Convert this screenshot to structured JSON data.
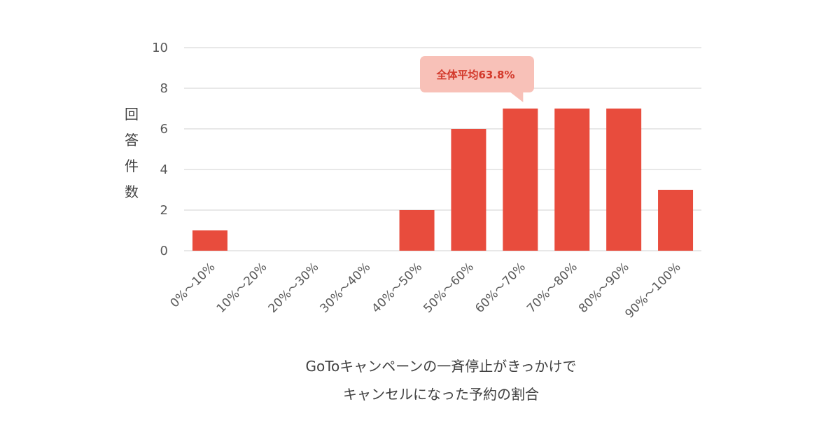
{
  "chart_data": {
    "type": "bar",
    "categories": [
      "0%～10%",
      "10%～20%",
      "20%～30%",
      "30%～40%",
      "40%～50%",
      "50%～60%",
      "60%～70%",
      "70%～80%",
      "80%～90%",
      "90%～100%"
    ],
    "values": [
      1,
      0,
      0,
      0,
      2,
      6,
      7,
      7,
      7,
      3
    ],
    "ylabel": "回答件数",
    "xlabel_lines": [
      "GoToキャンペーンの一斉停止がきっかけで",
      "キャンセルになった予約の割合"
    ],
    "ylim": [
      0,
      10
    ],
    "yticks": [
      0,
      2,
      4,
      6,
      8,
      10
    ],
    "grid": true,
    "annotation": {
      "text": "全体平均63.8%",
      "category_index": 6
    },
    "colors": {
      "bar": "#e84c3d",
      "grid": "#d9d9d9",
      "callout_bg": "#f8c1b8",
      "callout_text": "#d33a2c"
    }
  }
}
